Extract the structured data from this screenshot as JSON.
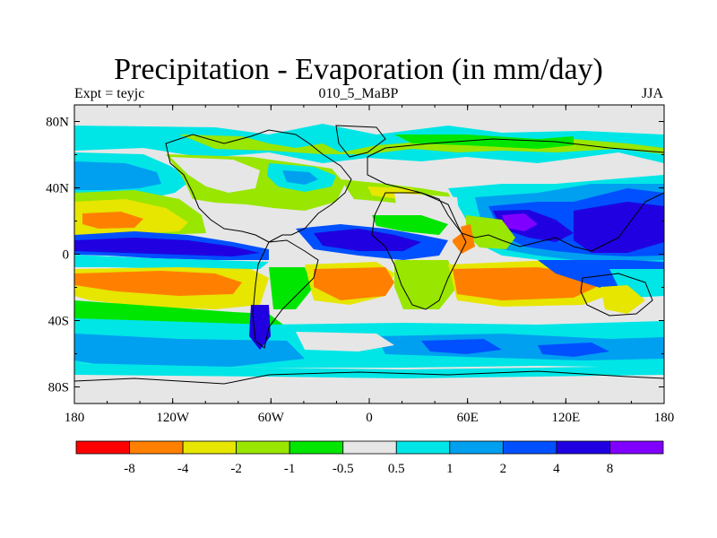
{
  "title": "Precipitation - Evaporation (in mm/day)",
  "subtitle_left": "Expt = teyjc",
  "subtitle_center": "010_5_MaBP",
  "subtitle_right": "JJA",
  "map": {
    "projection": "cylindrical equidistant",
    "x_ticks": [
      "180",
      "120W",
      "60W",
      "0",
      "60E",
      "120E",
      "180"
    ],
    "y_ticks": [
      "80N",
      "40N",
      "0",
      "40S",
      "80S"
    ],
    "coastlines": true
  },
  "colorbar": {
    "labels": [
      "-8",
      "-4",
      "-2",
      "-1",
      "-0.5",
      "0.5",
      "1",
      "2",
      "4",
      "8"
    ],
    "colors": [
      "#ff0000",
      "#ff8000",
      "#e6e600",
      "#99e600",
      "#00e600",
      "#e6e6e6",
      "#00e6e6",
      "#00a0f0",
      "#0050ff",
      "#2000e0",
      "#8000ff"
    ]
  }
}
